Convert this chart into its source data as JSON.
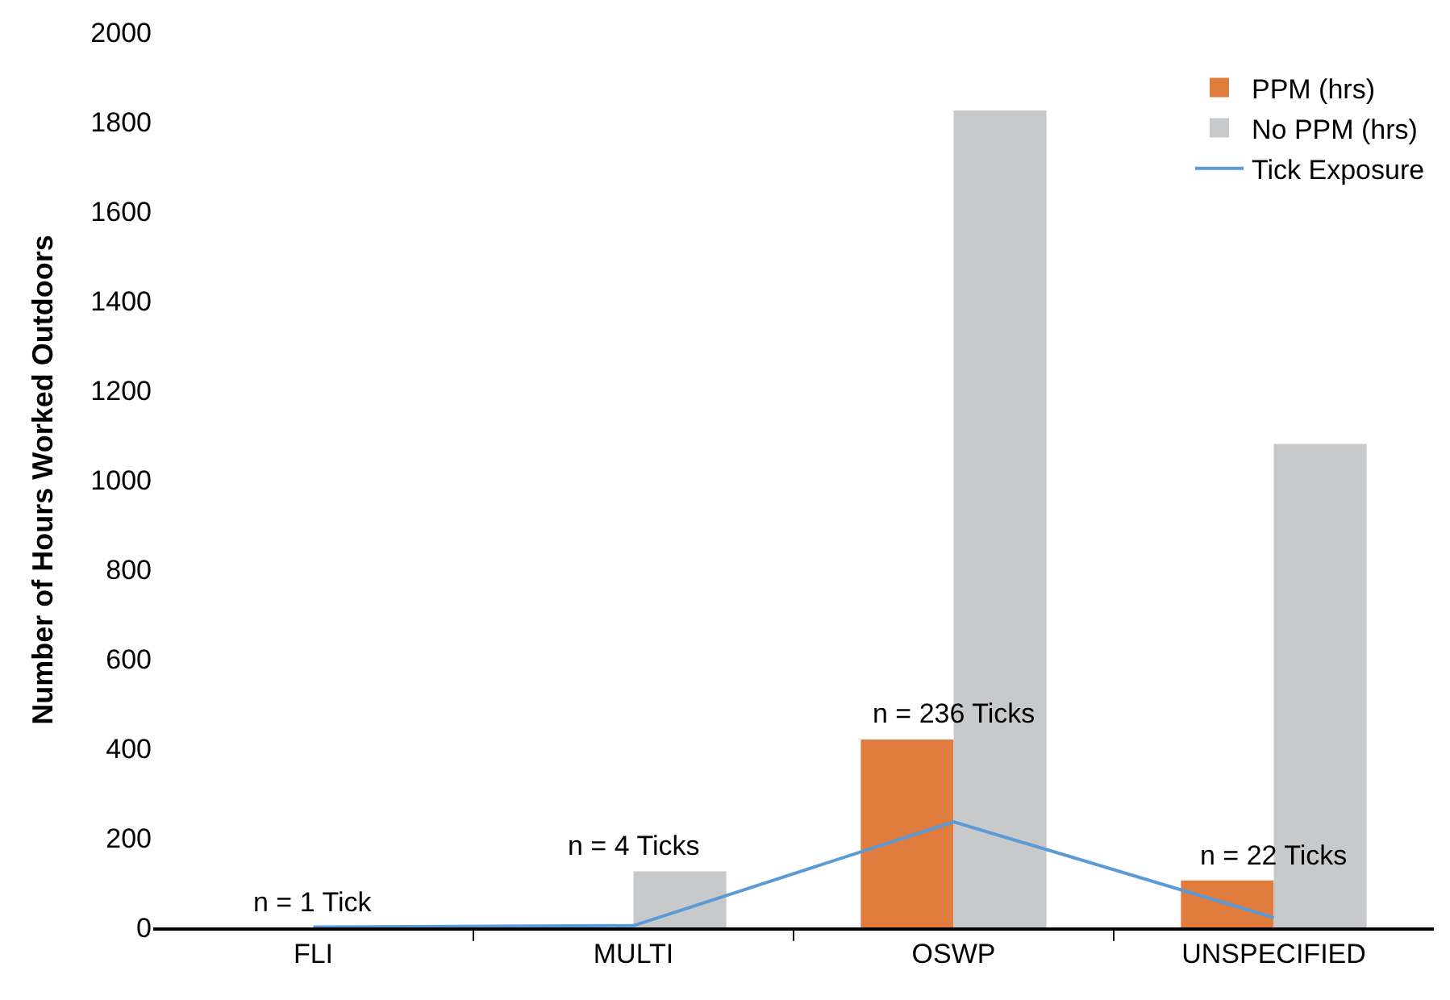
{
  "chart_data": {
    "type": "bar",
    "ylabel": "Number of Hours Worked Outdoors",
    "categories": [
      "FLI",
      "MULTI",
      "OSWP",
      "UNSPECIFIED"
    ],
    "series": [
      {
        "name": "PPM (hrs)",
        "color": "#e07c3e",
        "values": [
          0,
          0,
          420,
          105
        ]
      },
      {
        "name": "No PPM (hrs)",
        "color": "#c8c9cb",
        "values": [
          0,
          125,
          1825,
          1080
        ]
      },
      {
        "name": "Tick Exposure",
        "type": "line",
        "color": "#5b9bd5",
        "values": [
          1,
          4,
          236,
          22
        ]
      }
    ],
    "ylim": [
      0,
      2000
    ],
    "yticks": [
      0,
      200,
      400,
      600,
      800,
      1000,
      1200,
      1400,
      1600,
      1800,
      2000
    ],
    "grid": false,
    "legend": "top right",
    "annotations": [
      {
        "text": "n = 1 Tick",
        "x": "FLI",
        "y": 1
      },
      {
        "text": "n = 4 Ticks",
        "x": "MULTI",
        "y": 125
      },
      {
        "text": "n = 236 Ticks",
        "x": "OSWP",
        "y": 420
      },
      {
        "text": "n = 22 Ticks",
        "x": "UNSPECIFIED",
        "y": 105
      }
    ]
  }
}
